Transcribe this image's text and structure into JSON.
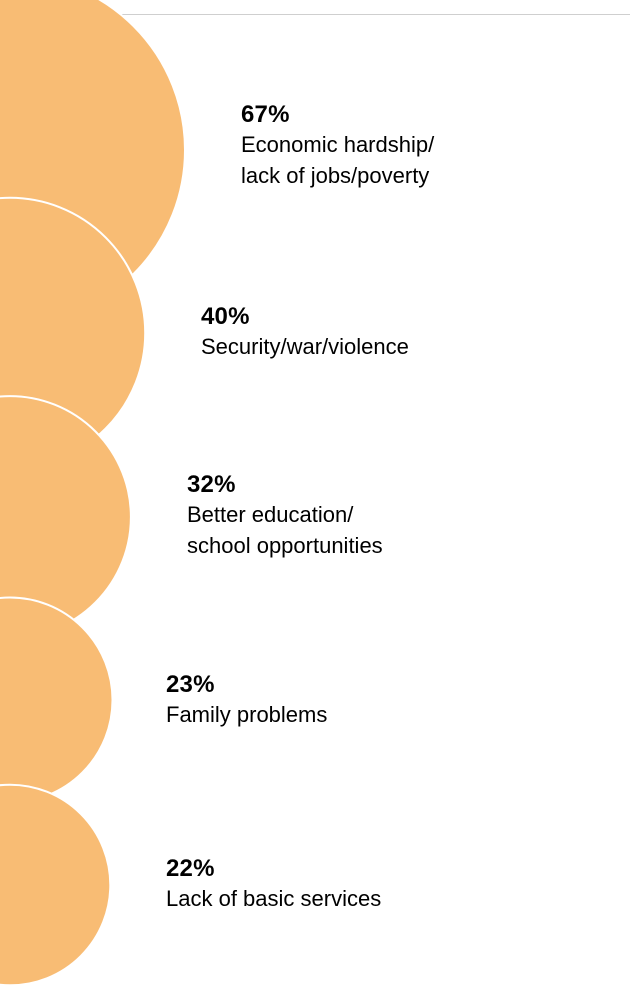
{
  "chart_data": {
    "type": "bubble",
    "categories": [
      "Economic hardship/\nlack of jobs/poverty",
      "Security/war/violence",
      "Better education/\nschool opportunities",
      "Family problems",
      "Lack of basic services"
    ],
    "values": [
      67,
      40,
      32,
      23,
      22
    ],
    "value_labels": [
      "67%",
      "40%",
      "32%",
      "23%",
      "22%"
    ],
    "unit": "%",
    "colors": {
      "bubble": "#F8BC74",
      "outline": "#FFFFFF",
      "rule": "#CFCFCF"
    }
  }
}
